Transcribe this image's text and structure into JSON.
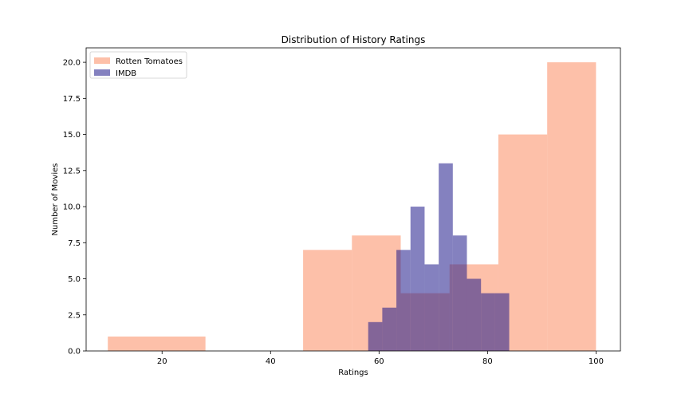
{
  "chart_data": {
    "type": "histogram",
    "title": "Distribution of History Ratings",
    "xlabel": "Ratings",
    "ylabel": "Number of Movies",
    "xlim": [
      6.0,
      104.5
    ],
    "ylim": [
      0,
      21
    ],
    "xticks": [
      20,
      40,
      60,
      80,
      100
    ],
    "yticks": [
      0.0,
      2.5,
      5.0,
      7.5,
      10.0,
      12.5,
      15.0,
      17.5,
      20.0
    ],
    "grid": false,
    "legend": "top-left",
    "series": [
      {
        "name": "Rotten Tomatoes",
        "color": "#fc8d62",
        "opacity": 0.55,
        "bins": [
          {
            "x0": 10,
            "x1": 28,
            "count": 1
          },
          {
            "x0": 28,
            "x1": 46,
            "count": 0
          },
          {
            "x0": 46,
            "x1": 55,
            "count": 7
          },
          {
            "x0": 55,
            "x1": 64,
            "count": 8
          },
          {
            "x0": 64,
            "x1": 73,
            "count": 4
          },
          {
            "x0": 73,
            "x1": 82,
            "count": 6
          },
          {
            "x0": 82,
            "x1": 91,
            "count": 15
          },
          {
            "x0": 91,
            "x1": 100,
            "count": 20
          }
        ]
      },
      {
        "name": "IMDB",
        "color": "#1f1a8a",
        "opacity": 0.55,
        "bins": [
          {
            "x0": 58.0,
            "x1": 60.6,
            "count": 2
          },
          {
            "x0": 60.6,
            "x1": 63.2,
            "count": 3
          },
          {
            "x0": 63.2,
            "x1": 65.8,
            "count": 7
          },
          {
            "x0": 65.8,
            "x1": 68.4,
            "count": 10
          },
          {
            "x0": 68.4,
            "x1": 71.0,
            "count": 6
          },
          {
            "x0": 71.0,
            "x1": 73.6,
            "count": 13
          },
          {
            "x0": 73.6,
            "x1": 76.2,
            "count": 8
          },
          {
            "x0": 76.2,
            "x1": 78.8,
            "count": 5
          },
          {
            "x0": 78.8,
            "x1": 81.4,
            "count": 4
          },
          {
            "x0": 81.4,
            "x1": 84.0,
            "count": 4
          }
        ]
      }
    ]
  }
}
